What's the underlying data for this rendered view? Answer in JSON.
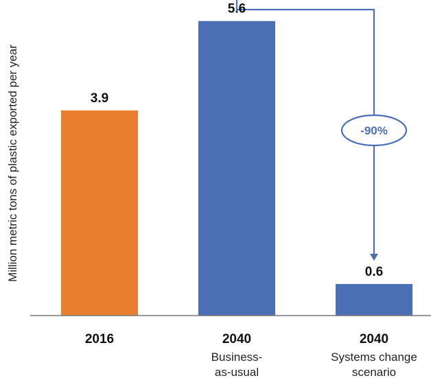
{
  "chart_data": {
    "type": "bar",
    "ylabel": "Million metric tons of plastic exported per year",
    "ylim": [
      0,
      6.0
    ],
    "grid": false,
    "categories": [
      {
        "label": "2016",
        "sublabel": []
      },
      {
        "label": "2040",
        "sublabel": [
          "Business-",
          "as-usual"
        ]
      },
      {
        "label": "2040",
        "sublabel": [
          "Systems change",
          "scenario"
        ]
      }
    ],
    "values": [
      3.9,
      5.6,
      0.6
    ],
    "value_labels": [
      "3.9",
      "5.6",
      "0.6"
    ],
    "bar_colors": [
      "#E97F2E",
      "#4A6FB5",
      "#4A6FB5"
    ],
    "annotation": {
      "text": "-90%",
      "from_category": 1,
      "to_category": 2,
      "color": "#4A6FB5"
    }
  }
}
